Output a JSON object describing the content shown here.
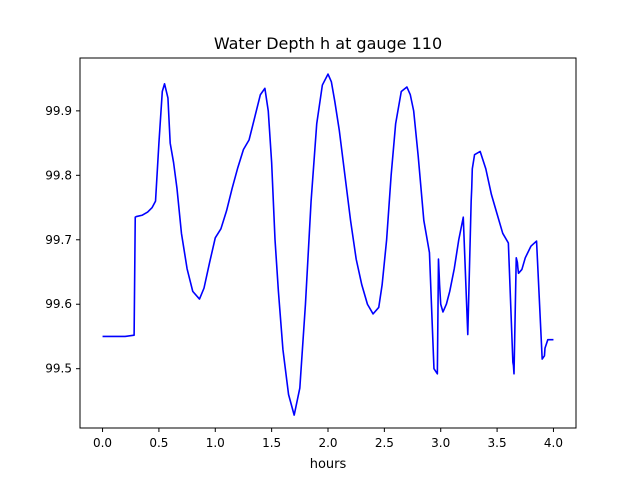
{
  "chart_data": {
    "type": "line",
    "title": "Water Depth h at gauge 110",
    "xlabel": "hours",
    "ylabel": "",
    "xlim": [
      -0.2,
      4.2
    ],
    "ylim": [
      99.408,
      99.982
    ],
    "xticks": [
      0.0,
      0.5,
      1.0,
      1.5,
      2.0,
      2.5,
      3.0,
      3.5,
      4.0
    ],
    "xtick_labels": [
      "0.0",
      "0.5",
      "1.0",
      "1.5",
      "2.0",
      "2.5",
      "3.0",
      "3.5",
      "4.0"
    ],
    "yticks": [
      99.5,
      99.6,
      99.7,
      99.8,
      99.9
    ],
    "ytick_labels": [
      "99.5",
      "99.6",
      "99.7",
      "99.8",
      "99.9"
    ],
    "grid": false,
    "legend": "none",
    "series": [
      {
        "color": "#0000ff",
        "x": [
          0.0,
          0.1,
          0.2,
          0.28,
          0.29,
          0.3,
          0.35,
          0.4,
          0.44,
          0.47,
          0.5,
          0.53,
          0.55,
          0.58,
          0.6,
          0.63,
          0.66,
          0.7,
          0.75,
          0.8,
          0.86,
          0.9,
          0.95,
          1.0,
          1.05,
          1.1,
          1.15,
          1.2,
          1.25,
          1.3,
          1.35,
          1.4,
          1.44,
          1.47,
          1.5,
          1.53,
          1.56,
          1.6,
          1.65,
          1.7,
          1.75,
          1.8,
          1.85,
          1.9,
          1.95,
          2.0,
          2.03,
          2.06,
          2.1,
          2.15,
          2.2,
          2.25,
          2.3,
          2.35,
          2.4,
          2.45,
          2.48,
          2.52,
          2.56,
          2.6,
          2.65,
          2.7,
          2.73,
          2.76,
          2.8,
          2.85,
          2.9,
          2.94,
          2.97,
          2.98,
          2.985,
          2.99,
          3.0,
          3.02,
          3.05,
          3.08,
          3.12,
          3.16,
          3.2,
          3.24,
          3.27,
          3.275,
          3.28,
          3.3,
          3.35,
          3.4,
          3.45,
          3.5,
          3.55,
          3.6,
          3.64,
          3.645,
          3.65,
          3.67,
          3.68,
          3.685,
          3.69,
          3.72,
          3.75,
          3.8,
          3.85,
          3.9,
          3.92,
          3.925,
          3.95,
          4.0
        ],
        "y": [
          99.55,
          99.55,
          99.55,
          99.552,
          99.735,
          99.736,
          99.738,
          99.743,
          99.75,
          99.76,
          99.85,
          99.93,
          99.942,
          99.92,
          99.85,
          99.82,
          99.78,
          99.71,
          99.655,
          99.62,
          99.608,
          99.625,
          99.665,
          99.703,
          99.717,
          99.745,
          99.78,
          99.812,
          99.84,
          99.855,
          99.89,
          99.925,
          99.935,
          99.9,
          99.82,
          99.7,
          99.62,
          99.53,
          99.46,
          99.428,
          99.47,
          99.6,
          99.76,
          99.88,
          99.94,
          99.957,
          99.945,
          99.915,
          99.87,
          99.8,
          99.73,
          99.67,
          99.63,
          99.6,
          99.585,
          99.595,
          99.63,
          99.7,
          99.8,
          99.88,
          99.93,
          99.937,
          99.925,
          99.9,
          99.83,
          99.73,
          99.68,
          99.5,
          99.492,
          99.67,
          99.65,
          99.63,
          99.6,
          99.588,
          99.6,
          99.62,
          99.655,
          99.7,
          99.735,
          99.553,
          99.76,
          99.78,
          99.81,
          99.832,
          99.837,
          99.81,
          99.77,
          99.74,
          99.71,
          99.695,
          99.51,
          99.505,
          99.492,
          99.672,
          99.665,
          99.655,
          99.648,
          99.654,
          99.672,
          99.69,
          99.698,
          99.515,
          99.52,
          99.532,
          99.545,
          99.545
        ]
      }
    ]
  }
}
